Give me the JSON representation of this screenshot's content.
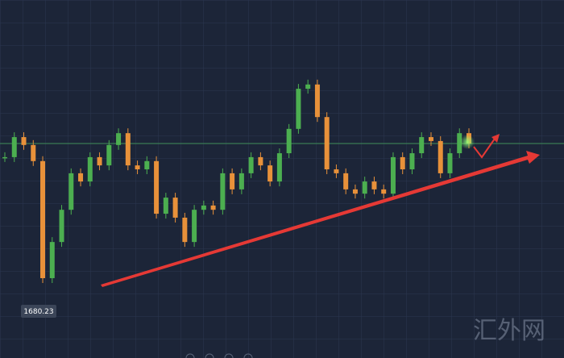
{
  "chart_data": {
    "type": "candle",
    "values": [
      1716.1,
      1721.7,
      1719.5,
      1715.0,
      1682.3,
      1692.4,
      1701.4,
      1711.6,
      1709.3,
      1716.1,
      1713.8,
      1719.5,
      1722.8,
      1713.8,
      1712.7,
      1715.0,
      1700.3,
      1704.8,
      1699.2,
      1692.4,
      1701.4,
      1702.6,
      1701.4,
      1711.6,
      1707.1,
      1711.6,
      1716.1,
      1713.8,
      1709.3,
      1717.2,
      1724.0,
      1735.2,
      1736.4,
      1727.3,
      1712.7,
      1711.6,
      1707.1,
      1705.9,
      1709.3,
      1707.1,
      1705.9,
      1716.1,
      1712.7,
      1717.2,
      1721.7,
      1720.6,
      1711.6,
      1717.2,
      1722.8,
      1719.9
    ],
    "ylim": [
      1660,
      1760
    ],
    "up_color": "#4caf50",
    "down_color": "#e8913a",
    "price_line": 1719.9,
    "price_line_color": "#3f8f5a",
    "low_label": "1680.23",
    "watermark": "汇外网"
  }
}
